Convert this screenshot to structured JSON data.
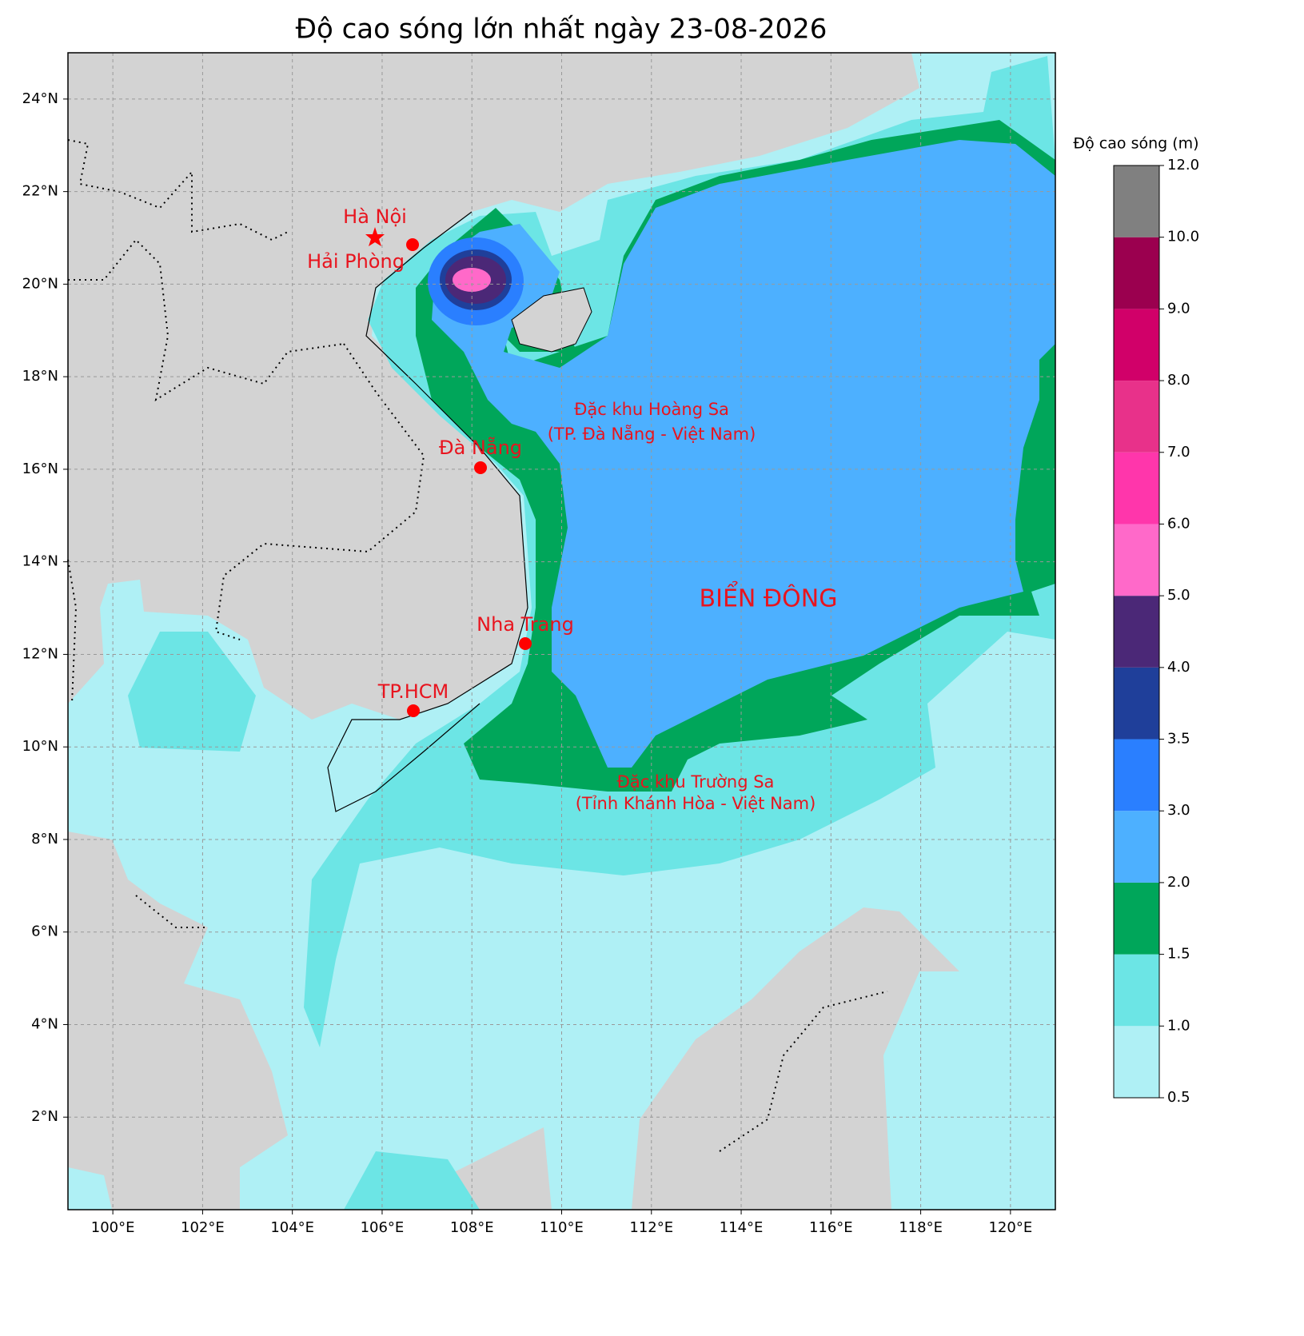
{
  "title": "Độ cao sóng lớn nhất ngày 23-08-2026",
  "map": {
    "xlim": [
      99,
      121
    ],
    "ylim": [
      0,
      25
    ],
    "grid": true,
    "xticks": [
      {
        "value": 100,
        "label": "100°E"
      },
      {
        "value": 102,
        "label": "102°E"
      },
      {
        "value": 104,
        "label": "104°E"
      },
      {
        "value": 106,
        "label": "106°E"
      },
      {
        "value": 108,
        "label": "108°E"
      },
      {
        "value": 110,
        "label": "110°E"
      },
      {
        "value": 112,
        "label": "112°E"
      },
      {
        "value": 114,
        "label": "114°E"
      },
      {
        "value": 116,
        "label": "116°E"
      },
      {
        "value": 118,
        "label": "118°E"
      },
      {
        "value": 120,
        "label": "120°E"
      }
    ],
    "yticks": [
      {
        "value": 2,
        "label": "2°N"
      },
      {
        "value": 4,
        "label": "4°N"
      },
      {
        "value": 6,
        "label": "6°N"
      },
      {
        "value": 8,
        "label": "8°N"
      },
      {
        "value": 10,
        "label": "10°N"
      },
      {
        "value": 12,
        "label": "12°N"
      },
      {
        "value": 14,
        "label": "14°N"
      },
      {
        "value": 16,
        "label": "16°N"
      },
      {
        "value": 18,
        "label": "18°N"
      },
      {
        "value": 20,
        "label": "20°N"
      },
      {
        "value": 22,
        "label": "22°N"
      },
      {
        "value": 24,
        "label": "24°N"
      }
    ]
  },
  "places": [
    {
      "name": "Hà Nội"
    },
    {
      "name": "Hải Phòng"
    },
    {
      "name": "Đà Nẵng"
    },
    {
      "name": "Nha Trang"
    },
    {
      "name": "TP.HCM"
    }
  ],
  "annotations": {
    "hoang_sa": [
      "Đặc khu Hoàng Sa",
      "(TP. Đà Nẵng - Việt Nam)"
    ],
    "truong_sa": [
      "Đặc khu Trường Sa",
      "(Tỉnh Khánh Hòa - Việt Nam)"
    ],
    "sea": "BIỂN ĐÔNG"
  },
  "colorbar": {
    "label": "Độ cao sóng (m)",
    "levels": [
      0.5,
      {
        "value": 1,
        "label": "1.0"
      },
      1.5,
      {
        "value": 2,
        "label": "2.0"
      },
      {
        "value": 3,
        "label": "3.0"
      },
      3.5,
      {
        "value": 4,
        "label": "4.0"
      },
      {
        "value": 5,
        "label": "5.0"
      },
      {
        "value": 6,
        "label": "6.0"
      },
      {
        "value": 7,
        "label": "7.0"
      },
      {
        "value": 8,
        "label": "8.0"
      },
      {
        "value": 9,
        "label": "9.0"
      },
      {
        "value": 10,
        "label": "10.0"
      },
      {
        "value": 12,
        "label": "12.0"
      }
    ],
    "colors": [
      "#aff0f5",
      "#6ce5e5",
      "#00a65a",
      "#4db0ff",
      "#2a7fff",
      "#1f3f9a",
      "#4b2877",
      "#ff69c9",
      "#ff36ab",
      "#e8318a",
      "#d10069",
      "#9b004f",
      "#808080"
    ]
  }
}
